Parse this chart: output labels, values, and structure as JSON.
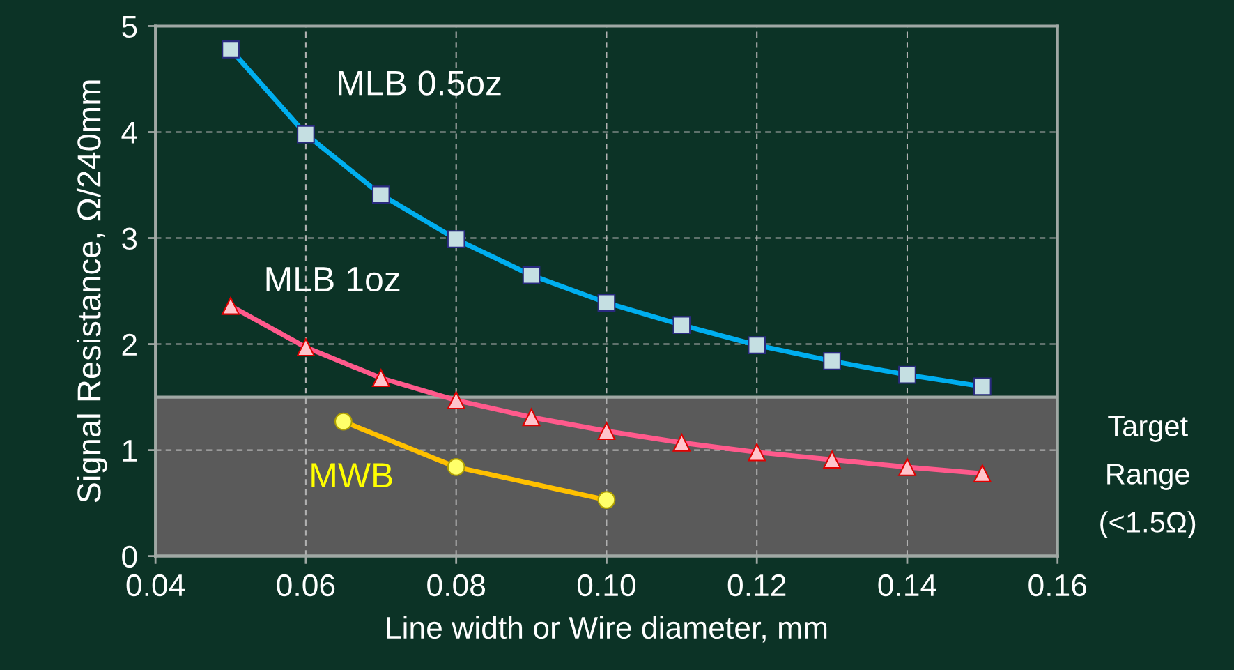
{
  "chart_data": {
    "type": "line",
    "xlabel": "Line width or Wire diameter, mm",
    "ylabel": "Signal Resistance, Ω/240mm",
    "xlim": [
      0.04,
      0.16
    ],
    "xticks": [
      0.04,
      0.06,
      0.08,
      {
        "value": 0.1,
        "label": "0.10"
      },
      0.12,
      0.14,
      0.16
    ],
    "ylim": [
      0,
      5
    ],
    "yticks": [
      0,
      1,
      2,
      3,
      4,
      5
    ],
    "grid": true,
    "line_style": "solid",
    "series": [
      {
        "name": "MLB 0.5oz",
        "color": "#00aeef",
        "marker": "square",
        "x": [
          0.05,
          0.06,
          0.07,
          0.08,
          0.09,
          0.1,
          0.11,
          0.12,
          0.13,
          0.14,
          0.15
        ],
        "values": [
          4.78,
          3.98,
          3.41,
          2.99,
          2.65,
          2.39,
          2.18,
          1.99,
          1.84,
          1.71,
          1.6
        ]
      },
      {
        "name": "MLB 1oz",
        "color": "#ff5a8c",
        "marker": "triangle",
        "x": [
          0.05,
          0.06,
          0.07,
          0.08,
          0.09,
          0.1,
          0.11,
          0.12,
          0.13,
          0.14,
          0.15
        ],
        "values": [
          2.36,
          1.97,
          1.68,
          1.47,
          1.31,
          1.18,
          1.07,
          0.98,
          0.91,
          0.84,
          0.78
        ]
      },
      {
        "name": "MWB",
        "color": "#ffc000",
        "marker": "circle",
        "x": [
          0.065,
          0.08,
          0.1
        ],
        "values": [
          1.27,
          0.84,
          0.53
        ]
      }
    ],
    "bands": [
      {
        "axis": "y",
        "from": 0,
        "to": 1.5,
        "label": "Target\nRange\n(<1.5Ω)",
        "color": "#5a5a5a"
      }
    ]
  }
}
